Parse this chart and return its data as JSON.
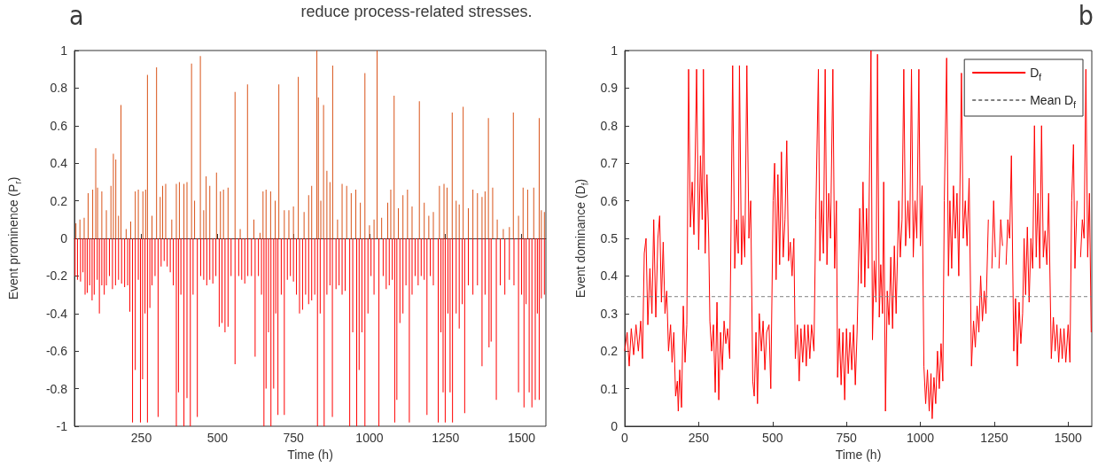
{
  "chart_data": [
    {
      "type": "bar",
      "title": "a",
      "annotations": [
        "reduce process-related stresses."
      ],
      "xlabel": "Time (h)",
      "ylabel": "Event prominence (P$_{r}$)",
      "xlim": [
        30,
        1580
      ],
      "xticks": [
        250,
        500,
        750,
        1000,
        1250,
        1500
      ],
      "ylim": [
        -1,
        1
      ],
      "yticks": [
        -1,
        -0.8,
        -0.6,
        -0.4,
        -0.2,
        0,
        0.2,
        0.4,
        0.6,
        0.8,
        1
      ],
      "series": [
        {
          "color": "#d95319",
          "x": [
            35,
            48,
            62,
            75,
            90,
            100,
            106,
            120,
            135,
            150,
            158,
            166,
            175,
            183,
            200,
            215,
            230,
            240,
            255,
            264,
            270,
            285,
            300,
            312,
            320,
            330,
            350,
            365,
            375,
            390,
            400,
            415,
            425,
            444,
            455,
            463,
            475,
            497,
            510,
            520,
            535,
            558,
            575,
            599,
            620,
            640,
            650,
            660,
            675,
            690,
            702,
            720,
            735,
            750,
            766,
            785,
            800,
            810,
            827,
            832,
            840,
            849,
            860,
            870,
            879,
            895,
            910,
            925,
            940,
            955,
            970,
            985,
            1000,
            1015,
            1025,
            1040,
            1060,
            1070,
            1081,
            1095,
            1110,
            1125,
            1140,
            1164,
            1180,
            1195,
            1210,
            1230,
            1245,
            1255,
            1272,
            1285,
            1295,
            1308,
            1325,
            1340,
            1355,
            1370,
            1380,
            1391,
            1405,
            1420,
            1440,
            1460,
            1473,
            1490,
            1505,
            1520,
            1540,
            1558,
            1565,
            1575
          ],
          "values": [
            0.08,
            0.1,
            0.11,
            0.24,
            0.26,
            0.48,
            0.27,
            0.25,
            0.15,
            0.28,
            0.45,
            0.42,
            0.12,
            0.71,
            0.05,
            0.09,
            0.25,
            0.26,
            0.25,
            0.26,
            0.87,
            0.12,
            0.91,
            0.22,
            0.28,
            0.29,
            0.1,
            0.29,
            0.3,
            0.29,
            0.3,
            0.93,
            0.2,
            0.97,
            0.15,
            0.33,
            0.28,
            0.35,
            0.25,
            0.26,
            0.27,
            0.78,
            0.05,
            0.82,
            0.1,
            0.03,
            0.25,
            0.26,
            0.25,
            0.2,
            0.82,
            0.15,
            0.15,
            0.17,
            0.86,
            0.14,
            0.23,
            0.28,
            1.0,
            0.75,
            0.2,
            0.71,
            0.36,
            0.3,
            0.92,
            0.1,
            0.29,
            0.28,
            0.24,
            0.26,
            0.19,
            0.88,
            0.07,
            0.1,
            1.0,
            0.11,
            0.19,
            0.26,
            0.76,
            0.16,
            0.23,
            0.26,
            0.17,
            0.73,
            0.19,
            0.12,
            0.14,
            0.28,
            0.29,
            0.27,
            0.67,
            0.2,
            0.18,
            0.7,
            0.16,
            0.26,
            0.24,
            0.22,
            0.25,
            0.64,
            0.27,
            0.1,
            0.05,
            0.06,
            0.67,
            0.12,
            0.27,
            0.26,
            0.27,
            0.64,
            0.15,
            0.14
          ]
        },
        {
          "color": "#ff0000",
          "x": [
            32,
            40,
            50,
            58,
            65,
            72,
            80,
            88,
            95,
            105,
            112,
            120,
            128,
            135,
            145,
            155,
            165,
            175,
            185,
            195,
            205,
            212,
            221,
            230,
            240,
            247,
            254,
            262,
            270,
            278,
            285,
            295,
            305,
            315,
            325,
            335,
            345,
            355,
            365,
            372,
            380,
            390,
            400,
            411,
            420,
            434,
            445,
            455,
            465,
            475,
            485,
            495,
            506,
            515,
            525,
            535,
            545,
            558,
            570,
            580,
            590,
            600,
            612,
            624,
            635,
            645,
            653,
            660,
            668,
            676,
            685,
            692,
            699,
            710,
            720,
            730,
            740,
            750,
            760,
            770,
            780,
            790,
            800,
            810,
            820,
            829,
            838,
            851,
            860,
            870,
            878,
            890,
            900,
            910,
            920,
            935,
            945,
            958,
            966,
            975,
            985,
            995,
            1005,
            1015,
            1031,
            1045,
            1055,
            1065,
            1075,
            1083,
            1090,
            1100,
            1110,
            1120,
            1131,
            1140,
            1150,
            1160,
            1170,
            1180,
            1189,
            1200,
            1210,
            1226,
            1235,
            1242,
            1249,
            1258,
            1265,
            1273,
            1285,
            1295,
            1305,
            1313,
            1325,
            1340,
            1355,
            1370,
            1380,
            1393,
            1400,
            1417,
            1430,
            1445,
            1460,
            1475,
            1490,
            1500,
            1508,
            1515,
            1525,
            1534,
            1545,
            1552,
            1558,
            1565,
            1575
          ],
          "values": [
            -0.2,
            -0.22,
            -0.23,
            -0.18,
            -0.3,
            -0.29,
            -0.25,
            -0.33,
            -0.3,
            -0.22,
            -0.4,
            -0.25,
            -0.3,
            -0.25,
            -0.2,
            -0.27,
            -0.25,
            -0.22,
            -0.24,
            -0.26,
            -0.25,
            -0.39,
            -0.98,
            -0.7,
            -0.22,
            -0.98,
            -0.75,
            -0.4,
            -0.98,
            -0.37,
            -0.25,
            -0.2,
            -0.95,
            -0.15,
            -0.12,
            -0.15,
            -0.18,
            -0.25,
            -1.0,
            -0.82,
            -0.3,
            -1.0,
            -0.85,
            -1.0,
            -0.3,
            -0.95,
            -0.2,
            -0.22,
            -0.25,
            -0.22,
            -0.24,
            -0.2,
            -0.47,
            -0.45,
            -0.5,
            -0.47,
            -0.2,
            -0.67,
            -0.2,
            -0.22,
            -0.24,
            -0.2,
            -0.2,
            -0.63,
            -0.2,
            -0.3,
            -1.0,
            -0.8,
            -0.5,
            -1.0,
            -0.8,
            -0.4,
            -0.94,
            -0.3,
            -0.94,
            -0.22,
            -0.2,
            -0.23,
            -0.3,
            -0.4,
            -0.38,
            -0.3,
            -0.35,
            -0.33,
            -0.3,
            -1.0,
            -0.4,
            -1.0,
            -0.3,
            -0.25,
            -0.95,
            -0.27,
            -0.25,
            -0.3,
            -0.28,
            -1.0,
            -0.5,
            -1.0,
            -0.7,
            -0.5,
            -1.0,
            -0.4,
            -0.2,
            -0.3,
            -1.0,
            -0.2,
            -0.27,
            -0.25,
            -0.22,
            -0.98,
            -0.86,
            -0.45,
            -0.4,
            -0.25,
            -0.98,
            -0.3,
            -0.2,
            -0.25,
            -0.2,
            -0.22,
            -0.94,
            -0.2,
            -0.25,
            -0.98,
            -0.5,
            -0.82,
            -0.98,
            -0.4,
            -0.82,
            -0.98,
            -0.4,
            -0.48,
            -0.35,
            -0.93,
            -0.25,
            -0.3,
            -0.25,
            -0.68,
            -0.3,
            -0.58,
            -0.55,
            -0.86,
            -0.25,
            -0.3,
            -0.22,
            -0.25,
            -0.82,
            -0.3,
            -0.9,
            -0.35,
            -0.82,
            -0.9,
            -0.86,
            -0.4,
            -0.86,
            -0.32,
            -0.3
          ]
        }
      ]
    },
    {
      "type": "line",
      "title": "b",
      "xlabel": "Time (h)",
      "ylabel": "Event dominance (D$_{f}$)",
      "xlim": [
        0,
        1580
      ],
      "xticks": [
        0,
        250,
        500,
        750,
        1000,
        1250,
        1500
      ],
      "ylim": [
        0,
        1
      ],
      "yticks": [
        0,
        0.1,
        0.2,
        0.3,
        0.4,
        0.5,
        0.6,
        0.7,
        0.8,
        0.9,
        1
      ],
      "legend": "top right",
      "marker": "none",
      "series": [
        {
          "name": "D$_{f}$",
          "color": "#ff0000",
          "line_style": "solid",
          "x": [
            0,
            8,
            15,
            22,
            30,
            38,
            46,
            54,
            60,
            66,
            72,
            78,
            85,
            92,
            98,
            105,
            112,
            118,
            124,
            130,
            136,
            142,
            148,
            155,
            160,
            166,
            172,
            178,
            181,
            186,
            192,
            198,
            204,
            210,
            216,
            222,
            228,
            234,
            243,
            250,
            256,
            262,
            266,
            272,
            278,
            284,
            288,
            294,
            300,
            306,
            312,
            318,
            324,
            330,
            336,
            342,
            348,
            355,
            365,
            372,
            378,
            384,
            388,
            395,
            400,
            406,
            413,
            420,
            426,
            433,
            438,
            444,
            449,
            455,
            462,
            468,
            474,
            480,
            488,
            494,
            502,
            507,
            512,
            518,
            524,
            530,
            536,
            542,
            548,
            554,
            560,
            566,
            572,
            577,
            584,
            590,
            596,
            602,
            608,
            614,
            620,
            626,
            632,
            640,
            646,
            655,
            660,
            666,
            672,
            678,
            684,
            690,
            696,
            704,
            710,
            716,
            720,
            726,
            732,
            738,
            744,
            750,
            756,
            762,
            768,
            774,
            780,
            786,
            795,
            800,
            806,
            812,
            818,
            824,
            833,
            838,
            844,
            850,
            855,
            861,
            866,
            872,
            876,
            882,
            888,
            894,
            900,
            906,
            912,
            918,
            927,
            932,
            938,
            944,
            950,
            958,
            964,
            970,
            976,
            982,
            988,
            995,
            1000,
            1006,
            1012,
            1018,
            1024,
            1030,
            1036,
            1040,
            1046,
            1052,
            1058,
            1064,
            1070,
            1076,
            1081,
            1089,
            1095,
            1100,
            1106,
            1112,
            1118,
            1124,
            1130,
            1139,
            1145,
            1152,
            1158,
            1165,
            1173,
            1180,
            1186,
            1192,
            1198,
            1204,
            1210,
            1216,
            1222,
            1230,
            1236,
            1242,
            1248,
            1254,
            1260,
            1266,
            1272,
            1278,
            1285,
            1290,
            1296,
            1302,
            1308,
            1316,
            1322,
            1328,
            1334,
            1340,
            1346,
            1351,
            1356,
            1362,
            1368,
            1374,
            1380,
            1386,
            1392,
            1398,
            1404,
            1410,
            1416,
            1422,
            1428,
            1434,
            1443,
            1450,
            1456,
            1462,
            1468,
            1474,
            1480,
            1486,
            1492,
            1500,
            1506,
            1512,
            1518,
            1523,
            1530,
            1536,
            1542,
            1548,
            1554,
            1560,
            1566,
            1572,
            1578
          ],
          "values": [
            0.2,
            0.25,
            0.16,
            0.26,
            0.19,
            0.27,
            0.2,
            0.28,
            0.18,
            0.46,
            0.5,
            0.27,
            0.42,
            0.3,
            0.55,
            0.29,
            0.5,
            0.56,
            0.33,
            0.49,
            0.3,
            0.36,
            0.2,
            0.27,
            0.17,
            0.25,
            0.08,
            0.12,
            0.04,
            0.15,
            0.05,
            0.32,
            0.17,
            0.27,
            0.95,
            0.53,
            0.65,
            0.51,
            0.95,
            0.47,
            0.72,
            0.55,
            0.95,
            0.46,
            0.67,
            0.5,
            0.28,
            0.2,
            0.27,
            0.09,
            0.33,
            0.07,
            0.25,
            0.15,
            0.28,
            0.22,
            0.26,
            0.18,
            0.96,
            0.42,
            0.55,
            0.46,
            0.96,
            0.43,
            0.56,
            0.45,
            0.96,
            0.5,
            0.6,
            0.12,
            0.08,
            0.25,
            0.06,
            0.3,
            0.2,
            0.28,
            0.15,
            0.25,
            0.27,
            0.1,
            0.6,
            0.7,
            0.39,
            0.67,
            0.43,
            0.73,
            0.45,
            0.55,
            0.76,
            0.44,
            0.49,
            0.4,
            0.5,
            0.18,
            0.27,
            0.12,
            0.26,
            0.17,
            0.27,
            0.16,
            0.27,
            0.18,
            0.27,
            0.2,
            0.55,
            0.95,
            0.44,
            0.6,
            0.46,
            0.95,
            0.43,
            0.62,
            0.5,
            0.95,
            0.42,
            0.6,
            0.13,
            0.26,
            0.11,
            0.25,
            0.07,
            0.26,
            0.14,
            0.25,
            0.15,
            0.27,
            0.11,
            0.25,
            0.58,
            0.38,
            0.65,
            0.37,
            0.58,
            0.42,
            1.0,
            0.23,
            0.44,
            0.33,
            0.99,
            0.29,
            0.43,
            0.3,
            0.65,
            0.04,
            0.36,
            0.27,
            0.45,
            0.26,
            0.48,
            0.3,
            0.6,
            0.45,
            0.55,
            0.95,
            0.48,
            0.6,
            0.5,
            0.95,
            0.45,
            0.6,
            0.5,
            0.95,
            0.48,
            0.64,
            0.16,
            0.06,
            0.15,
            0.04,
            0.14,
            0.02,
            0.13,
            0.06,
            0.2,
            0.1,
            0.22,
            0.12,
            0.6,
            0.98,
            0.4,
            0.6,
            0.42,
            0.64,
            0.5,
            0.62,
            0.4,
            0.94,
            0.5,
            0.6,
            0.48,
            0.66,
            0.16,
            0.28,
            0.21,
            0.32,
            0.25,
            0.4,
            0.28,
            0.36,
            0.3,
            0.55,
            null,
            0.42,
            0.6,
            0.45,
            null,
            0.42,
            0.55,
            0.48,
            null,
            0.43,
            0.55,
            0.5,
            0.72,
            0.2,
            0.34,
            0.16,
            0.33,
            0.22,
            0.3,
            0.5,
            0.35,
            0.53,
            0.33,
            0.5,
            0.42,
            0.8,
            0.45,
            0.62,
            0.42,
            0.8,
            0.45,
            0.52,
            0.43,
            0.62,
            0.18,
            0.29,
            0.2,
            0.27,
            0.17,
            0.26,
            0.18,
            0.26,
            0.17,
            0.27,
            0.17,
            0.6,
            0.75,
            0.42,
            0.6,
            null,
            0.45,
            0.55,
            0.5,
            0.95,
            0.45,
            0.62,
            0.25
          ]
        },
        {
          "name": "Mean D$_{f}$",
          "color": "#808080",
          "line_style": "dashed",
          "x": [
            0,
            1580
          ],
          "values": [
            0.345,
            0.345
          ]
        }
      ]
    }
  ]
}
